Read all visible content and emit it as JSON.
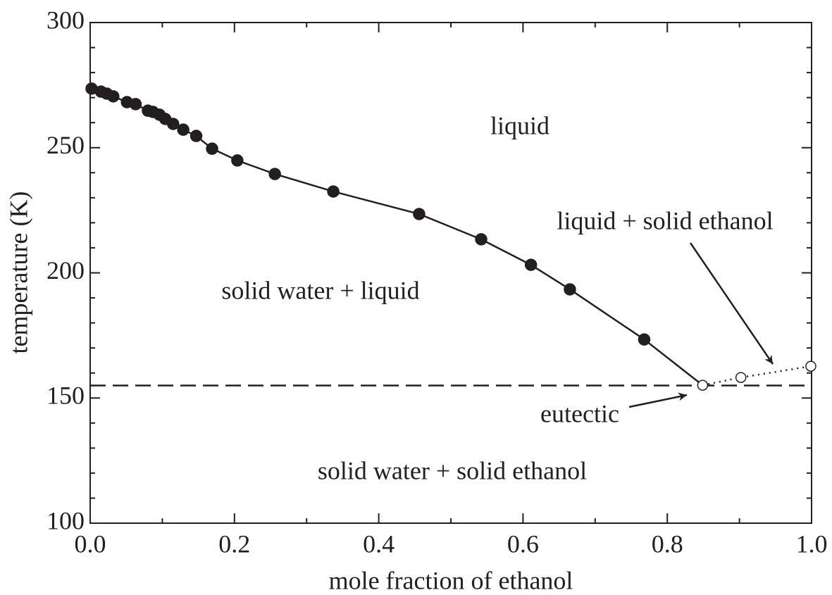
{
  "chart_data": {
    "type": "line",
    "xlabel": "mole fraction of ethanol",
    "ylabel": "temperature (K)",
    "xlim": [
      0,
      1
    ],
    "ylim": [
      100,
      300
    ],
    "xticks": [
      {
        "value": 0,
        "label": "0.0"
      },
      0.2,
      0.4,
      0.6,
      0.8,
      {
        "value": 1,
        "label": "1.0"
      }
    ],
    "xminorticks": [
      0.1,
      0.3,
      0.5,
      0.7,
      0.9
    ],
    "yticks": [
      100,
      150,
      200,
      250,
      300
    ],
    "yminorticks": [
      110,
      120,
      130,
      140,
      160,
      170,
      180,
      190,
      210,
      220,
      230,
      240,
      260,
      270,
      280,
      290
    ],
    "color": "#231f20",
    "series": [
      {
        "marker": "filled",
        "line": "solid",
        "x": [
          0.002,
          0.015,
          0.023,
          0.032,
          0.051,
          0.063,
          0.08,
          0.087,
          0.096,
          0.104,
          0.115,
          0.129,
          0.147,
          0.169,
          0.204,
          0.256,
          0.337,
          0.456,
          0.542,
          0.611,
          0.665,
          0.768
        ],
        "values": [
          273.6,
          272.4,
          271.6,
          270.5,
          268.2,
          267.4,
          264.8,
          264.3,
          263.2,
          261.5,
          259.5,
          257.2,
          254.7,
          249.6,
          244.9,
          239.5,
          232.5,
          223.5,
          213.4,
          203.2,
          193.4,
          173.4
        ]
      },
      {
        "marker": "open",
        "line": "dotted",
        "x": [
          0.849,
          0.902,
          0.999
        ],
        "values": [
          155.1,
          158.2,
          162.7
        ]
      }
    ],
    "hline": 155,
    "annotations": [
      "liquid",
      "liquid + solid ethanol",
      "solid water + liquid",
      "eutectic",
      "solid water + solid ethanol"
    ]
  }
}
